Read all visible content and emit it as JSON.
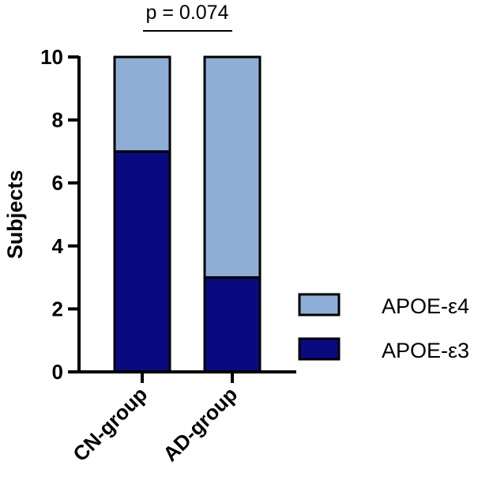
{
  "chart_data": {
    "type": "bar",
    "stacked": true,
    "categories": [
      "CN-group",
      "AD-group"
    ],
    "series": [
      {
        "name": "APOE-ε3",
        "values": [
          7,
          3
        ],
        "color": "#0a0a80"
      },
      {
        "name": "APOE-ε4",
        "values": [
          3,
          7
        ],
        "color": "#8eaed6"
      }
    ],
    "title": "",
    "xlabel": "",
    "ylabel": "Subjects",
    "ylim": [
      0,
      10
    ],
    "yticks": [
      0,
      2,
      4,
      6,
      8,
      10
    ],
    "grid": false,
    "legend": {
      "placement": "right",
      "entries": [
        "APOE-ε4",
        "APOE-ε3"
      ]
    },
    "annotation": {
      "text": "p = 0.074",
      "between": [
        "CN-group",
        "AD-group"
      ]
    }
  }
}
